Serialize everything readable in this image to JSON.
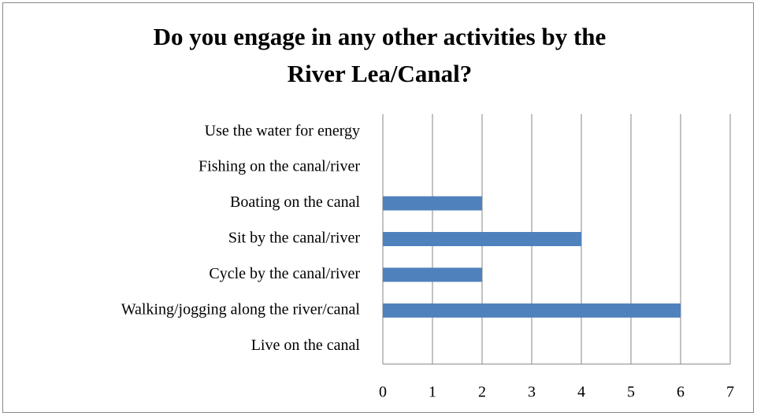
{
  "chart_data": {
    "type": "bar",
    "orientation": "horizontal",
    "title": [
      "Do you engage in any other activities by the",
      "River Lea/Canal?"
    ],
    "categories": [
      "Use the water for energy",
      "Fishing on the canal/river",
      "Boating on the canal",
      "Sit by the canal/river",
      "Cycle by the canal/river",
      "Walking/jogging along the river/canal",
      "Live on the canal"
    ],
    "values": [
      0,
      0,
      2,
      4,
      2,
      6,
      0
    ],
    "color": "#4f81bd",
    "xlim": [
      0,
      7
    ],
    "xticks": [
      0,
      1,
      2,
      3,
      4,
      5,
      6,
      7
    ],
    "grid": true
  }
}
